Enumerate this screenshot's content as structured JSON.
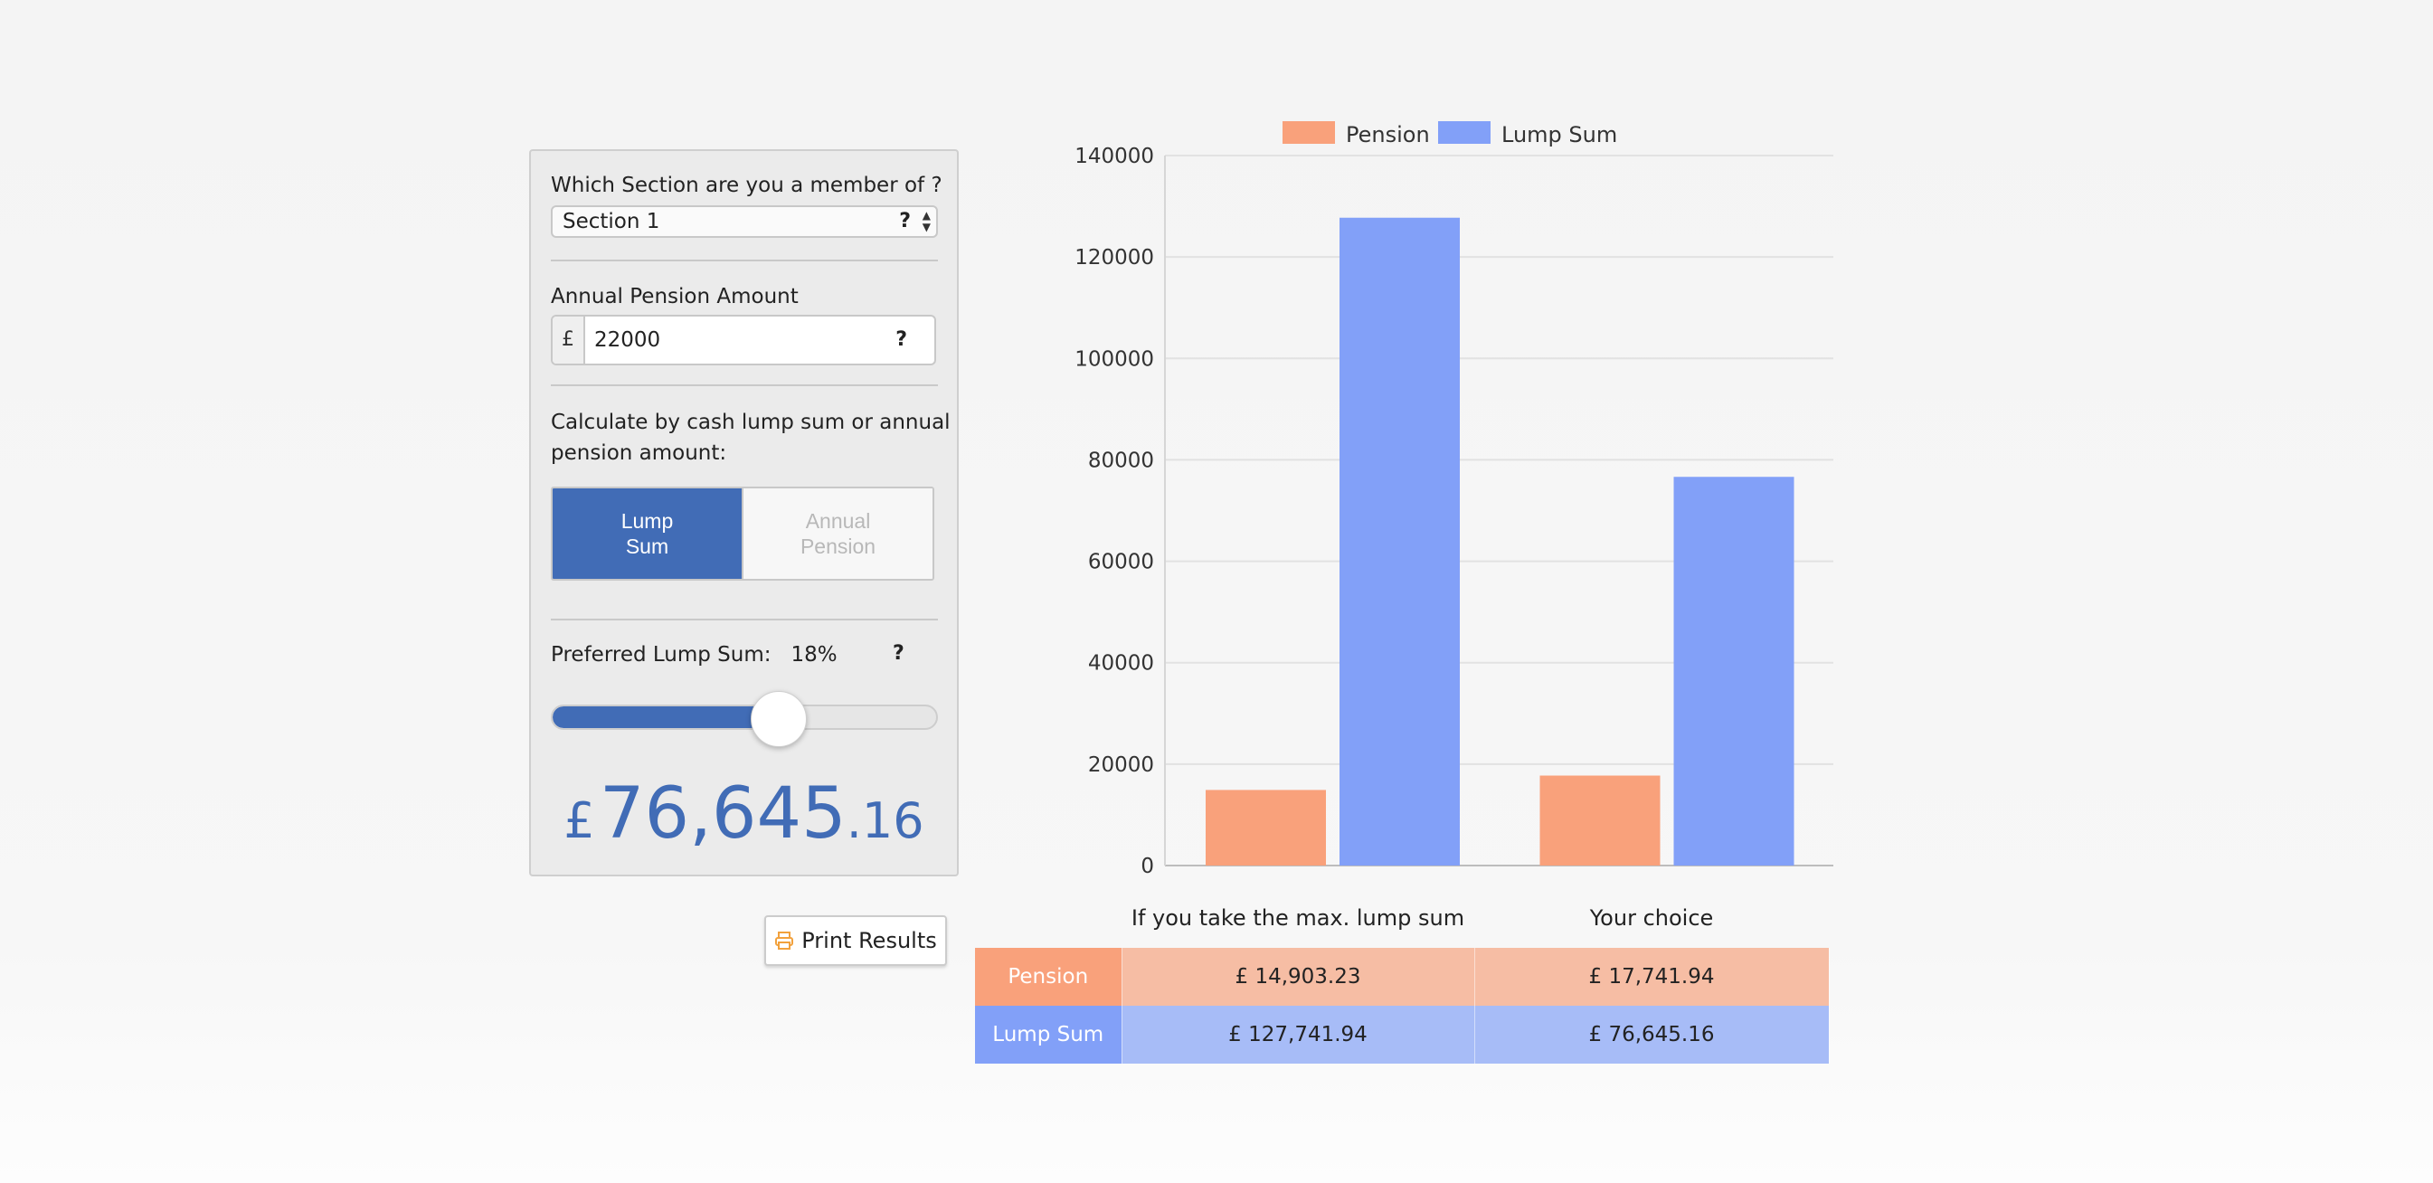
{
  "form": {
    "section_label": "Which Section are you a member of ?",
    "section_value": "Section 1",
    "help_glyph": "?",
    "amount_label": "Annual Pension Amount",
    "currency_symbol": "£",
    "amount_value": "22000",
    "calc_label_line1": "Calculate by cash lump sum or annual",
    "calc_label_line2": "pension amount:",
    "toggle": {
      "lump_sum_line1": "Lump",
      "lump_sum_line2": "Sum",
      "annual_pension_line1": "Annual",
      "annual_pension_line2": "Pension",
      "selected": "Lump Sum"
    },
    "preferred_label": "Preferred Lump Sum:",
    "preferred_percent": "18%",
    "slider_fraction": 0.58,
    "result_currency": "£",
    "result_main": "76,645",
    "result_decimals": ".16"
  },
  "print_button_label": "Print Results",
  "colors": {
    "accent": "#416cb6",
    "pension": "#f9a17b",
    "lump_sum": "#82a0f8",
    "pension_light": "#f6bda4",
    "lump_sum_light": "#a7bcf7",
    "print_icon": "#f2a13c"
  },
  "chart_data": {
    "type": "bar",
    "categories": [
      "If you take the max. lump sum",
      "Your choice"
    ],
    "series": [
      {
        "name": "Pension",
        "values": [
          14903.23,
          17741.94
        ]
      },
      {
        "name": "Lump Sum",
        "values": [
          127741.94,
          76645.16
        ]
      }
    ],
    "y_ticks": [
      0,
      20000,
      40000,
      60000,
      80000,
      100000,
      120000,
      140000
    ],
    "ylim": [
      0,
      140000
    ],
    "legend_position": "top-center",
    "grid": true
  },
  "table": {
    "rows": [
      {
        "label": "Pension",
        "values": [
          "£ 14,903.23",
          "£ 17,741.94"
        ]
      },
      {
        "label": "Lump Sum",
        "values": [
          "£ 127,741.94",
          "£ 76,645.16"
        ]
      }
    ]
  }
}
